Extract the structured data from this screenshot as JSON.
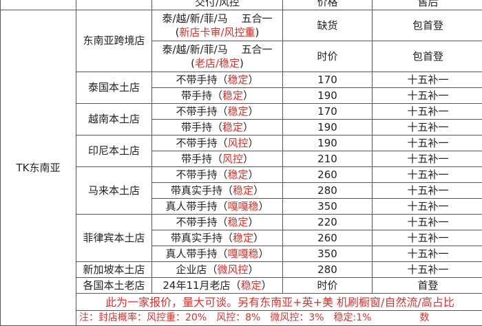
{
  "header": {
    "col_delivery": "交付/风控",
    "col_price": "价格",
    "col_after_sales": "售后"
  },
  "region": "TK东南亚",
  "groups": [
    {
      "store": "东南亚跨境店",
      "rows": [
        {
          "item": "泰/越/新/菲/马　 五合一",
          "tag": "新店卡审/风控重",
          "price": "缺货",
          "after": "包首登"
        },
        {
          "item": "泰/越/新/菲/马　 五合一",
          "tag": "老店/稳定",
          "price": "时价",
          "after": "包首登"
        }
      ]
    },
    {
      "store": "泰国本土店",
      "rows": [
        {
          "item": "不带手持",
          "tag": "稳定",
          "price": "170",
          "after": "十五补一"
        },
        {
          "item": "带手持",
          "tag": "稳定",
          "price": "190",
          "after": "十五补一"
        }
      ]
    },
    {
      "store": "越南本土店",
      "rows": [
        {
          "item": "不带手持",
          "tag": "稳定",
          "price": "170",
          "after": "十五补一"
        },
        {
          "item": "带手持",
          "tag": "稳定",
          "price": "190",
          "after": "十五补一"
        }
      ]
    },
    {
      "store": "印尼本土店",
      "rows": [
        {
          "item": "不带手持",
          "tag": "风控",
          "price": "190",
          "after": "十五补一"
        },
        {
          "item": "带手持",
          "tag": "风控",
          "price": "210",
          "after": "十五补一"
        }
      ]
    },
    {
      "store": "马来本土店",
      "rows": [
        {
          "item": "不带手持",
          "tag": "稳定",
          "price": "260",
          "after": "十五补一"
        },
        {
          "item": "带真实手持",
          "tag": "稳定",
          "price": "280",
          "after": "十五补一"
        },
        {
          "item": "真人带手持",
          "tag": "嘎嘎稳",
          "price": "350",
          "after": "十五补一"
        }
      ]
    },
    {
      "store": "菲律宾本土店",
      "rows": [
        {
          "item": "不带手持",
          "tag": "稳定",
          "price": "220",
          "after": "十五补一"
        },
        {
          "item": "带真实手持",
          "tag": "稳定",
          "price": "260",
          "after": "十五补一"
        },
        {
          "item": "真人带手持",
          "tag": "嘎嘎稳",
          "price": "350",
          "after": "十五补一"
        }
      ]
    },
    {
      "store": "新加坡本土店",
      "rows": [
        {
          "item": "企业店",
          "tag": "微风控",
          "price": "280",
          "after": "十五补一"
        }
      ]
    },
    {
      "store": "各国本土老店",
      "rows": [
        {
          "item": "24年11月老店",
          "tag": "稳定",
          "price": "时价",
          "after": "首登"
        }
      ]
    }
  ],
  "footer_note": "此为一家报价，量大可谈。另有东南亚+英+美 机刷橱窗/自然流/高占比",
  "footer_note2": "注：封店概率：风控重：20%　风控：8%　微风控：3%　稳定:1%　　　　　数"
}
